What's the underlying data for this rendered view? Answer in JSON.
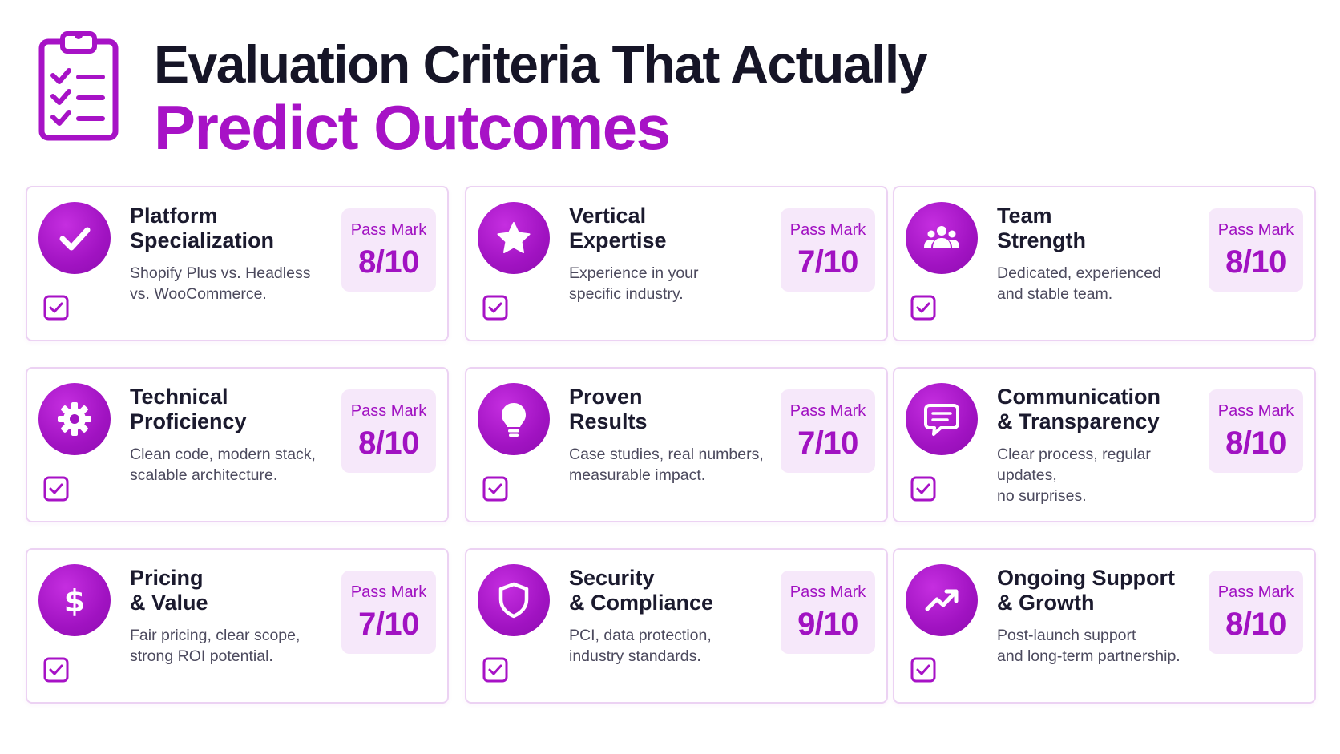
{
  "header": {
    "title_line1": "Evaluation Criteria That Actually",
    "title_line2": "Predict Outcomes",
    "icon": "clipboard-checklist-icon"
  },
  "colors": {
    "accent": "#a712c6",
    "title_dark": "#161527",
    "card_border": "#ecd2f3",
    "badge_bg": "#f6e8fa"
  },
  "pass_mark_label": "Pass Mark",
  "cards": [
    {
      "title": "Platform\nSpecialization",
      "description": "Shopify Plus vs. Headless\nvs. WooCommerce.",
      "score": "8/10",
      "icon": "checkmark-icon"
    },
    {
      "title": "Vertical\nExpertise",
      "description": "Experience in your\nspecific industry.",
      "score": "7/10",
      "icon": "star-icon"
    },
    {
      "title": "Team\nStrength",
      "description": "Dedicated, experienced\nand stable team.",
      "score": "8/10",
      "icon": "team-icon"
    },
    {
      "title": "Technical\nProficiency",
      "description": "Clean code, modern stack,\nscalable architecture.",
      "score": "8/10",
      "icon": "gear-icon"
    },
    {
      "title": "Proven\nResults",
      "description": "Case studies, real numbers,\nmeasurable impact.",
      "score": "7/10",
      "icon": "lightbulb-icon"
    },
    {
      "title": "Communication\n& Transparency",
      "description": "Clear process, regular updates,\nno surprises.",
      "score": "8/10",
      "icon": "chat-bubble-icon"
    },
    {
      "title": "Pricing\n& Value",
      "description": "Fair pricing, clear scope,\nstrong ROI potential.",
      "score": "7/10",
      "icon": "dollar-icon"
    },
    {
      "title": "Security\n& Compliance",
      "description": "PCI, data protection,\nindustry standards.",
      "score": "9/10",
      "icon": "shield-icon"
    },
    {
      "title": "Ongoing Support\n& Growth",
      "description": "Post-launch support\nand long-term partnership.",
      "score": "8/10",
      "icon": "trending-up-icon"
    }
  ]
}
